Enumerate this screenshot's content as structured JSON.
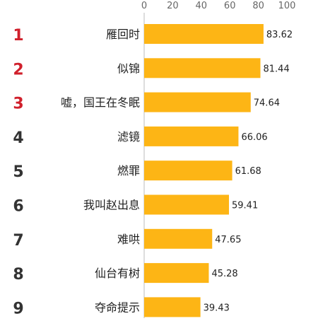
{
  "chart_data": {
    "type": "bar",
    "orientation": "horizontal",
    "ranks": [
      "1",
      "2",
      "3",
      "4",
      "5",
      "6",
      "7",
      "8",
      "9"
    ],
    "categories": [
      "雁回时",
      "似锦",
      "嘘，国王在冬眠",
      "滤镜",
      "燃罪",
      "我叫赵出息",
      "难哄",
      "仙台有树",
      "夺命提示"
    ],
    "values": [
      83.62,
      81.44,
      74.64,
      66.06,
      61.68,
      59.41,
      47.65,
      45.28,
      39.43
    ],
    "value_labels": [
      "83.62",
      "81.44",
      "74.64",
      "66.06",
      "61.68",
      "59.41",
      "47.65",
      "45.28",
      "39.43"
    ],
    "xticks": [
      "0",
      "20",
      "40",
      "60",
      "80",
      "100"
    ],
    "xtick_values": [
      0,
      20,
      40,
      60,
      80,
      100
    ],
    "xlim": [
      0,
      100
    ],
    "x_axis_position": "top",
    "grid": false,
    "colors": {
      "bar": "#FDB515",
      "top_rank": "#D0202C",
      "other_rank": "#333333",
      "label": "#222222",
      "tick": "#666666",
      "axis": "#bbbbbb"
    }
  }
}
